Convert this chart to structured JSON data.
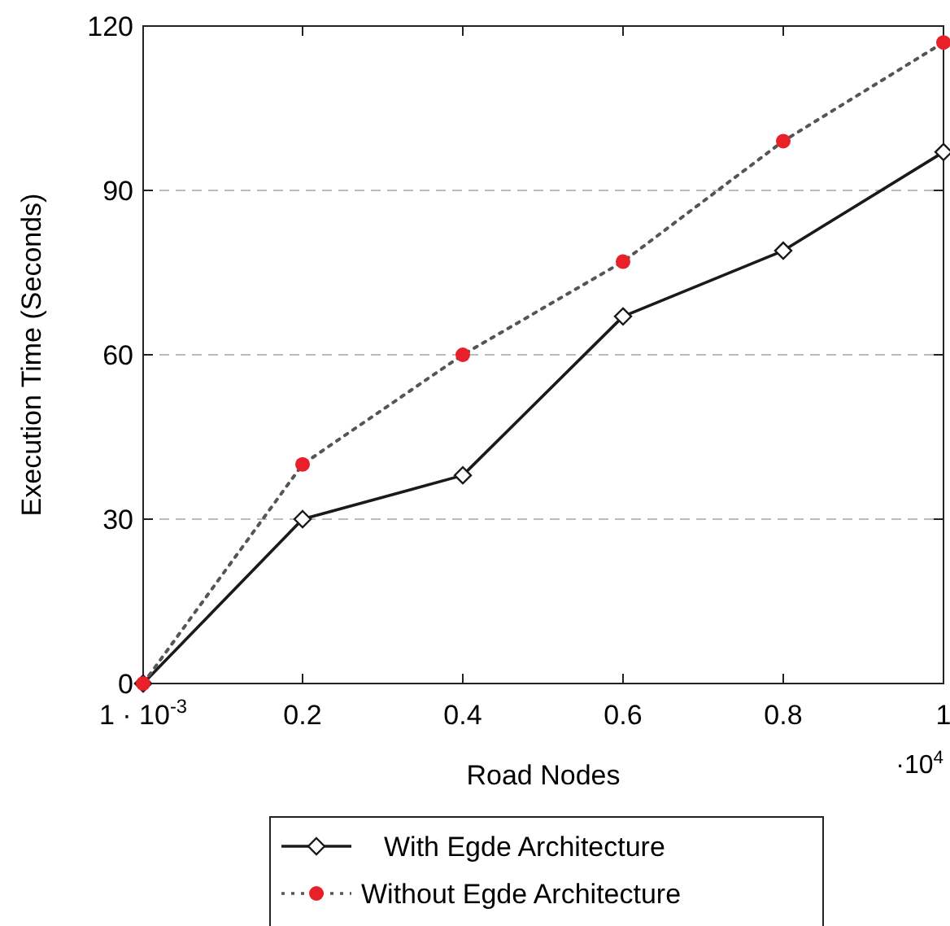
{
  "chart_data": {
    "type": "line",
    "xlabel": "Road Nodes",
    "ylabel": "Execution Time (Seconds)",
    "x": [
      0.001,
      0.2,
      0.4,
      0.6,
      0.8,
      1
    ],
    "series": [
      {
        "name": "With Egde Architecture",
        "color": "#1a1a1a",
        "values": [
          0,
          30,
          38,
          67,
          79,
          97
        ],
        "marker": "diamond",
        "line_style": "solid"
      },
      {
        "name": "Without Egde Architecture",
        "color": "#e8202a",
        "values": [
          0,
          40,
          60,
          77,
          99,
          117
        ],
        "marker": "circle",
        "line_style": "dotted"
      }
    ],
    "xlim": [
      0.001,
      1
    ],
    "xticks": [
      {
        "value": 0.001,
        "label": "1 · 10$^{-3}$"
      },
      0.2,
      0.4,
      0.6,
      0.8,
      1
    ],
    "ylim": [
      0,
      120
    ],
    "yticks": [
      0,
      30,
      60,
      90,
      120
    ],
    "annotations": [
      "·10$^{4}$"
    ],
    "grid": "y",
    "legend": "bottom"
  }
}
